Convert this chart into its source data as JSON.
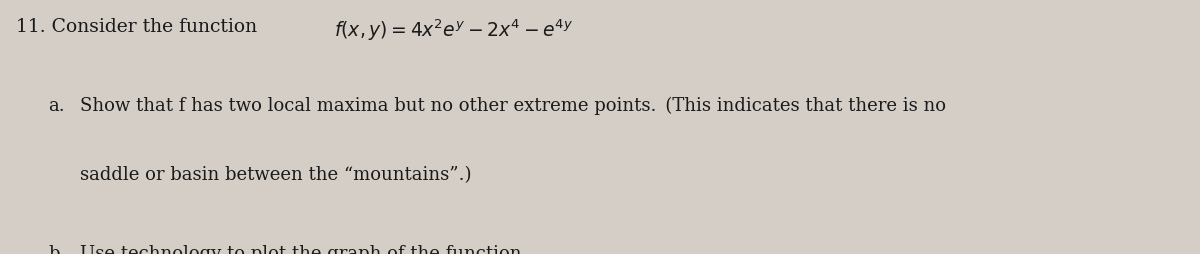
{
  "background_color": "#d4cec6",
  "text_color": "#1a1a1a",
  "fig_width": 12.0,
  "fig_height": 2.55,
  "dpi": 100,
  "line1_prefix": "11. Consider the function ",
  "line1_formula": "$f (x, y) = 4x^2e^y - 2x^4 - e^{4y}$",
  "part_a_label": "a.",
  "part_a_line1": "Show that f has two local maxima but no other extreme points. (This indicates that there is no",
  "part_a_line2": "saddle or basin between the “mountains”.)",
  "part_b_label": "b.",
  "part_b_text": "Use technology to plot the graph of the function.",
  "font_size_main": 13.5,
  "font_size_parts": 13.0,
  "font_family": "DejaVu Serif"
}
